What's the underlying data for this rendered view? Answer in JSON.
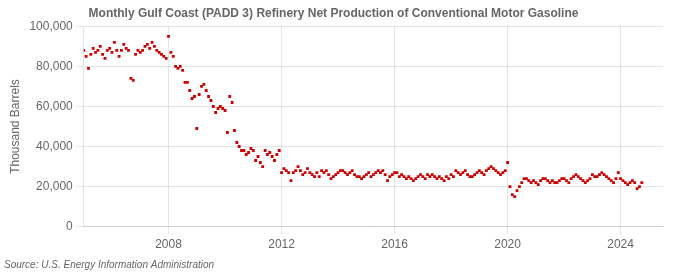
{
  "chart_data": {
    "type": "scatter",
    "title": "Monthly Gulf Coast (PADD 3) Refinery Net Production of Conventional Motor Gasoline",
    "ylabel": "Thousand Barrels",
    "annotations": [
      "Source: U.S. Energy Information Administration"
    ],
    "color": "#cc0000",
    "marker": "square",
    "grid": true,
    "xlim": [
      2005.0,
      2025.5
    ],
    "xticks": [
      2008,
      2012,
      2016,
      2020,
      2024
    ],
    "ylim": [
      0,
      100000
    ],
    "yticks": [
      0,
      {
        "value": 20000,
        "label": "20,000"
      },
      {
        "value": 40000,
        "label": "40,000"
      },
      {
        "value": 60000,
        "label": "60,000"
      },
      {
        "value": 80000,
        "label": "80,000"
      },
      {
        "value": 100000,
        "label": "100,000"
      }
    ],
    "x": [
      2005.0,
      2005.083,
      2005.167,
      2005.25,
      2005.333,
      2005.417,
      2005.5,
      2005.583,
      2005.667,
      2005.75,
      2005.833,
      2005.917,
      2006.0,
      2006.083,
      2006.167,
      2006.25,
      2006.333,
      2006.417,
      2006.5,
      2006.583,
      2006.667,
      2006.75,
      2006.833,
      2006.917,
      2007.0,
      2007.083,
      2007.167,
      2007.25,
      2007.333,
      2007.417,
      2007.5,
      2007.583,
      2007.667,
      2007.75,
      2007.833,
      2007.917,
      2008.0,
      2008.083,
      2008.167,
      2008.25,
      2008.333,
      2008.417,
      2008.5,
      2008.583,
      2008.667,
      2008.75,
      2008.833,
      2008.917,
      2009.0,
      2009.083,
      2009.167,
      2009.25,
      2009.333,
      2009.417,
      2009.5,
      2009.583,
      2009.667,
      2009.75,
      2009.833,
      2009.917,
      2010.0,
      2010.083,
      2010.167,
      2010.25,
      2010.333,
      2010.417,
      2010.5,
      2010.583,
      2010.667,
      2010.75,
      2010.833,
      2010.917,
      2011.0,
      2011.083,
      2011.167,
      2011.25,
      2011.333,
      2011.417,
      2011.5,
      2011.583,
      2011.667,
      2011.75,
      2011.833,
      2011.917,
      2012.0,
      2012.083,
      2012.167,
      2012.25,
      2012.333,
      2012.417,
      2012.5,
      2012.583,
      2012.667,
      2012.75,
      2012.833,
      2012.917,
      2013.0,
      2013.083,
      2013.167,
      2013.25,
      2013.333,
      2013.417,
      2013.5,
      2013.583,
      2013.667,
      2013.75,
      2013.833,
      2013.917,
      2014.0,
      2014.083,
      2014.167,
      2014.25,
      2014.333,
      2014.417,
      2014.5,
      2014.583,
      2014.667,
      2014.75,
      2014.833,
      2014.917,
      2015.0,
      2015.083,
      2015.167,
      2015.25,
      2015.333,
      2015.417,
      2015.5,
      2015.583,
      2015.667,
      2015.75,
      2015.833,
      2015.917,
      2016.0,
      2016.083,
      2016.167,
      2016.25,
      2016.333,
      2016.417,
      2016.5,
      2016.583,
      2016.667,
      2016.75,
      2016.833,
      2016.917,
      2017.0,
      2017.083,
      2017.167,
      2017.25,
      2017.333,
      2017.417,
      2017.5,
      2017.583,
      2017.667,
      2017.75,
      2017.833,
      2017.917,
      2018.0,
      2018.083,
      2018.167,
      2018.25,
      2018.333,
      2018.417,
      2018.5,
      2018.583,
      2018.667,
      2018.75,
      2018.833,
      2018.917,
      2019.0,
      2019.083,
      2019.167,
      2019.25,
      2019.333,
      2019.417,
      2019.5,
      2019.583,
      2019.667,
      2019.75,
      2019.833,
      2019.917,
      2020.0,
      2020.083,
      2020.167,
      2020.25,
      2020.333,
      2020.417,
      2020.5,
      2020.583,
      2020.667,
      2020.75,
      2020.833,
      2020.917,
      2021.0,
      2021.083,
      2021.167,
      2021.25,
      2021.333,
      2021.417,
      2021.5,
      2021.583,
      2021.667,
      2021.75,
      2021.833,
      2021.917,
      2022.0,
      2022.083,
      2022.167,
      2022.25,
      2022.333,
      2022.417,
      2022.5,
      2022.583,
      2022.667,
      2022.75,
      2022.833,
      2022.917,
      2023.0,
      2023.083,
      2023.167,
      2023.25,
      2023.333,
      2023.417,
      2023.5,
      2023.583,
      2023.667,
      2023.75,
      2023.833,
      2023.917,
      2024.0,
      2024.083,
      2024.167,
      2024.25,
      2024.333,
      2024.417,
      2024.5,
      2024.583,
      2024.667,
      2024.75
    ],
    "values": [
      88000,
      85000,
      79000,
      86000,
      89000,
      87000,
      88000,
      90000,
      86000,
      84000,
      88000,
      89000,
      87000,
      92000,
      88000,
      85000,
      88000,
      91000,
      89000,
      88000,
      74000,
      73000,
      86000,
      88000,
      87000,
      88000,
      90000,
      91000,
      89000,
      92000,
      90000,
      88000,
      87000,
      86000,
      85000,
      84000,
      95000,
      87000,
      85000,
      80000,
      79000,
      80000,
      78000,
      72000,
      72000,
      68000,
      64000,
      65000,
      49000,
      66000,
      70000,
      71000,
      68000,
      65000,
      63000,
      60000,
      57000,
      59000,
      60000,
      59000,
      58000,
      47000,
      65000,
      62000,
      48000,
      42000,
      40000,
      38000,
      38000,
      36000,
      37000,
      39000,
      38000,
      33000,
      35000,
      32000,
      30000,
      38000,
      36000,
      37000,
      35000,
      33000,
      36000,
      38000,
      27000,
      29000,
      28000,
      27000,
      23000,
      27000,
      28000,
      30000,
      28000,
      26000,
      27000,
      29000,
      27000,
      26000,
      25000,
      27000,
      25000,
      28000,
      27000,
      28000,
      26000,
      24000,
      25000,
      26000,
      27000,
      28000,
      28000,
      27000,
      26000,
      27000,
      28000,
      26000,
      25000,
      25000,
      24000,
      25000,
      26000,
      27000,
      25000,
      26000,
      27000,
      28000,
      27000,
      28000,
      26000,
      23000,
      25000,
      26000,
      27000,
      27000,
      25000,
      26000,
      25000,
      24000,
      25000,
      24000,
      23000,
      24000,
      25000,
      26000,
      25000,
      24000,
      26000,
      25000,
      26000,
      25000,
      24000,
      25000,
      24000,
      23000,
      25000,
      24000,
      26000,
      25000,
      28000,
      27000,
      26000,
      27000,
      28000,
      26000,
      25000,
      25000,
      26000,
      27000,
      28000,
      27000,
      26000,
      28000,
      29000,
      30000,
      29000,
      28000,
      27000,
      26000,
      27000,
      28000,
      32000,
      20000,
      16000,
      15000,
      18000,
      20000,
      22000,
      24000,
      24000,
      23000,
      22000,
      23000,
      22000,
      21000,
      23000,
      24000,
      24000,
      23000,
      22000,
      23000,
      22000,
      22000,
      23000,
      24000,
      24000,
      23000,
      22000,
      24000,
      25000,
      26000,
      25000,
      24000,
      23000,
      22000,
      23000,
      24000,
      26000,
      25000,
      25000,
      26000,
      27000,
      26000,
      25000,
      24000,
      23000,
      22000,
      24000,
      27000,
      24000,
      23000,
      22000,
      21000,
      22000,
      23000,
      22000,
      19000,
      20000,
      22000
    ]
  }
}
